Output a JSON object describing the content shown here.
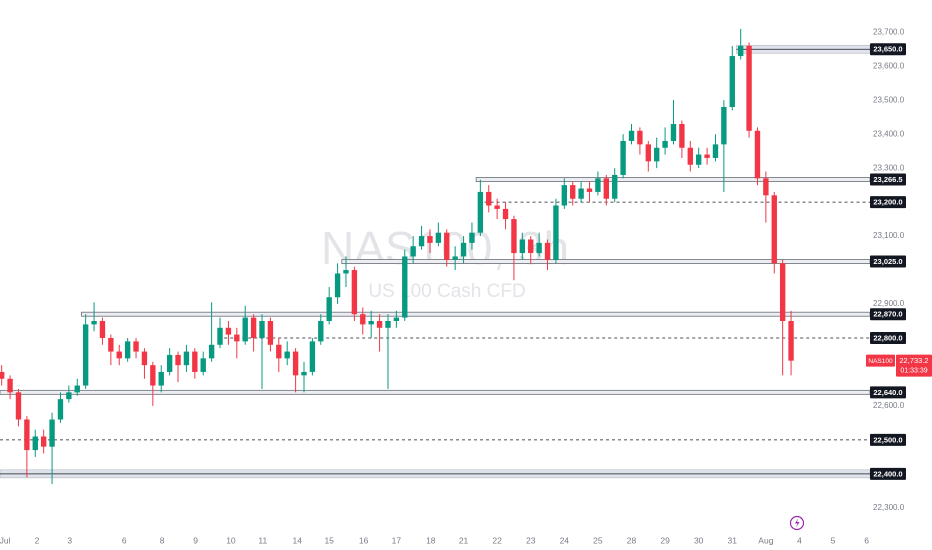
{
  "chart_data": {
    "type": "candlestick",
    "watermark": "NAS100, 3h",
    "watermark_subtitle": "US 100 Cash CFD",
    "up_color": "#089981",
    "down_color": "#f23645",
    "open": [
      22700,
      22680,
      22640,
      22560,
      22470,
      22510,
      22480,
      22560,
      22620,
      22640,
      22660,
      22840,
      22850,
      22800,
      22760,
      22740,
      22790,
      22760,
      22720,
      22660,
      22700,
      22750,
      22720,
      22760,
      22700,
      22740,
      22780,
      22830,
      22810,
      22790,
      22860,
      22800,
      22850,
      22780,
      22740,
      22760,
      22690,
      22700,
      22790,
      22850,
      22920,
      22990,
      23000,
      22870,
      22840,
      22850,
      22830,
      22850,
      22860,
      23040,
      23070,
      23100,
      23080,
      23110,
      23030,
      23040,
      23080,
      23110,
      23230,
      23190,
      23180,
      23150,
      23050,
      23090,
      23050,
      23080,
      23030,
      23190,
      23250,
      23210,
      23240,
      23230,
      23270,
      23210,
      23280,
      23380,
      23410,
      23370,
      23320,
      23360,
      23380,
      23430,
      23360,
      23310,
      23340,
      23330,
      23370,
      23480,
      23630,
      23660,
      23410,
      23270,
      23220,
      23020,
      22850
    ],
    "high": [
      22720,
      22690,
      22650,
      22570,
      22530,
      22530,
      22580,
      22640,
      22660,
      22680,
      22870,
      22905,
      22860,
      22810,
      22780,
      22800,
      22800,
      22770,
      22730,
      22720,
      22770,
      22760,
      22780,
      22770,
      22760,
      22905,
      22860,
      22850,
      22830,
      22895,
      22870,
      22870,
      22860,
      22800,
      22790,
      22770,
      22730,
      22800,
      22870,
      22950,
      23020,
      23040,
      23010,
      22890,
      22880,
      22870,
      22870,
      22880,
      23060,
      23100,
      23130,
      23120,
      23140,
      23120,
      23070,
      23100,
      23140,
      23266,
      23250,
      23210,
      23200,
      23160,
      23110,
      23100,
      23110,
      23090,
      23210,
      23270,
      23260,
      23260,
      23260,
      23290,
      23280,
      23300,
      23400,
      23430,
      23420,
      23380,
      23390,
      23420,
      23500,
      23440,
      23380,
      23360,
      23360,
      23400,
      23500,
      23660,
      23710,
      23670,
      23420,
      23290,
      23230,
      23030,
      22880
    ],
    "low": [
      22660,
      22620,
      22540,
      22390,
      22450,
      22460,
      22370,
      22550,
      22610,
      22630,
      22650,
      22820,
      22780,
      22720,
      22720,
      22730,
      22740,
      22680,
      22600,
      22640,
      22690,
      22670,
      22700,
      22680,
      22690,
      22730,
      22770,
      22780,
      22740,
      22780,
      22760,
      22650,
      22760,
      22700,
      22720,
      22640,
      22640,
      22690,
      22780,
      22840,
      22900,
      22950,
      22850,
      22810,
      22800,
      22760,
      22650,
      22830,
      22850,
      23020,
      23060,
      23050,
      23070,
      23010,
      23000,
      23020,
      23060,
      23100,
      23170,
      23150,
      23120,
      22970,
      23030,
      23020,
      23040,
      23000,
      23020,
      23180,
      23190,
      23200,
      23200,
      23220,
      23190,
      23200,
      23270,
      23370,
      23340,
      23290,
      23300,
      23340,
      23370,
      23330,
      23290,
      23300,
      23310,
      23320,
      23230,
      23470,
      23620,
      23390,
      23250,
      23140,
      22990,
      22690,
      22690
    ],
    "close": [
      22680,
      22640,
      22560,
      22470,
      22510,
      22480,
      22560,
      22620,
      22640,
      22660,
      22840,
      22850,
      22800,
      22760,
      22740,
      22790,
      22760,
      22720,
      22660,
      22700,
      22750,
      22720,
      22760,
      22700,
      22740,
      22780,
      22830,
      22810,
      22790,
      22860,
      22800,
      22850,
      22780,
      22740,
      22760,
      22690,
      22700,
      22790,
      22850,
      22920,
      22990,
      23000,
      22870,
      22840,
      22850,
      22830,
      22850,
      22860,
      23040,
      23070,
      23100,
      23080,
      23110,
      23030,
      23040,
      23080,
      23110,
      23230,
      23190,
      23180,
      23150,
      23050,
      23090,
      23050,
      23080,
      23030,
      23190,
      23250,
      23210,
      23240,
      23230,
      23270,
      23210,
      23280,
      23380,
      23410,
      23370,
      23320,
      23360,
      23380,
      23430,
      23360,
      23310,
      23340,
      23330,
      23370,
      23480,
      23630,
      23660,
      23410,
      23270,
      23220,
      23020,
      22850,
      22733.2
    ],
    "xlim": [
      -0.2,
      103.4
    ],
    "xticks": [
      {
        "value": 0.4,
        "label": "Jul"
      },
      {
        "value": 4.2,
        "label": "2"
      },
      {
        "value": 8.1,
        "label": "3"
      },
      {
        "value": 14.6,
        "label": "6"
      },
      {
        "value": 19.1,
        "label": "8"
      },
      {
        "value": 23.1,
        "label": "9"
      },
      {
        "value": 27.3,
        "label": "10"
      },
      {
        "value": 31.1,
        "label": "11"
      },
      {
        "value": 35.2,
        "label": "14"
      },
      {
        "value": 39.0,
        "label": "15"
      },
      {
        "value": 43.1,
        "label": "16"
      },
      {
        "value": 47.0,
        "label": "17"
      },
      {
        "value": 51.1,
        "label": "18"
      },
      {
        "value": 55.0,
        "label": "21"
      },
      {
        "value": 59.0,
        "label": "22"
      },
      {
        "value": 63.0,
        "label": "23"
      },
      {
        "value": 67.0,
        "label": "24"
      },
      {
        "value": 71.0,
        "label": "25"
      },
      {
        "value": 75.0,
        "label": "28"
      },
      {
        "value": 79.0,
        "label": "29"
      },
      {
        "value": 83.0,
        "label": "30"
      },
      {
        "value": 87.0,
        "label": "31"
      },
      {
        "value": 91.0,
        "label": "Aug"
      },
      {
        "value": 95.0,
        "label": "4"
      },
      {
        "value": 99.0,
        "label": "5"
      },
      {
        "value": 103.0,
        "label": "6"
      }
    ],
    "ylim": [
      22220,
      23795
    ],
    "yticks": [
      {
        "value": 23700,
        "label": "23,700.0"
      },
      {
        "value": 23600,
        "label": "23,600.0"
      },
      {
        "value": 23500,
        "label": "23,500.0"
      },
      {
        "value": 23400,
        "label": "23,400.0"
      },
      {
        "value": 23300,
        "label": "23,300.0"
      },
      {
        "value": 23100,
        "label": "23,100.0"
      },
      {
        "value": 22900,
        "label": "22,900.0"
      },
      {
        "value": 22600,
        "label": "22,600.0"
      },
      {
        "value": 22300,
        "label": "22,300.0"
      }
    ],
    "levels": [
      {
        "value": 23650,
        "label": "23,650.0",
        "style": "zone",
        "from": 88
      },
      {
        "value": 23266.5,
        "label": "23,266.5",
        "style": "double",
        "from": 57
      },
      {
        "value": 23200,
        "label": "23,200.0",
        "style": "dashed",
        "from": 58
      },
      {
        "value": 23025,
        "label": "23,025.0",
        "style": "double",
        "from": 41
      },
      {
        "value": 22870,
        "label": "22,870.0",
        "style": "double",
        "from": 10
      },
      {
        "value": 22800,
        "label": "22,800.0",
        "style": "dashed",
        "from": 27
      },
      {
        "value": 22640,
        "label": "22,640.0",
        "style": "double",
        "from": 0
      },
      {
        "value": 22500,
        "label": "22,500.0",
        "style": "dashed",
        "from": 0
      },
      {
        "value": 22400,
        "label": "22,400.0",
        "style": "zone",
        "from": 0
      }
    ],
    "symbol": "NAS100",
    "last_price": {
      "value": 22733.2,
      "label": "22,733.2"
    },
    "countdown": "01:33:39"
  }
}
